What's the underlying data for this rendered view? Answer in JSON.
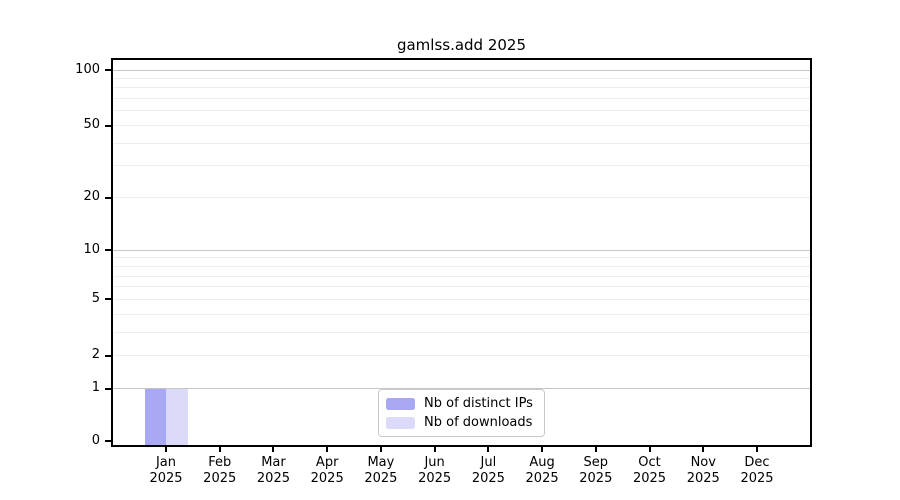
{
  "title": "gamlss.add 2025",
  "colors": {
    "distinct_ips": "#a9a8f2",
    "downloads": "#dbdaf8",
    "grid_minor": "#ededed",
    "grid_major": "#c6c6c6",
    "axis": "#000000",
    "legend_border": "#c9c9c9",
    "background": "#ffffff",
    "text": "#000000"
  },
  "chart_data": {
    "type": "bar",
    "title": "gamlss.add 2025",
    "x_categories": [
      {
        "month": "Jan",
        "year": "2025"
      },
      {
        "month": "Feb",
        "year": "2025"
      },
      {
        "month": "Mar",
        "year": "2025"
      },
      {
        "month": "Apr",
        "year": "2025"
      },
      {
        "month": "May",
        "year": "2025"
      },
      {
        "month": "Jun",
        "year": "2025"
      },
      {
        "month": "Jul",
        "year": "2025"
      },
      {
        "month": "Aug",
        "year": "2025"
      },
      {
        "month": "Sep",
        "year": "2025"
      },
      {
        "month": "Oct",
        "year": "2025"
      },
      {
        "month": "Nov",
        "year": "2025"
      },
      {
        "month": "Dec",
        "year": "2025"
      }
    ],
    "series": [
      {
        "name": "Nb of distinct IPs",
        "color_key": "distinct_ips",
        "values": [
          1,
          0,
          0,
          0,
          0,
          0,
          0,
          0,
          0,
          0,
          0,
          0
        ]
      },
      {
        "name": "Nb of downloads",
        "color_key": "downloads",
        "values": [
          1,
          0,
          0,
          0,
          0,
          0,
          0,
          0,
          0,
          0,
          0,
          0
        ]
      }
    ],
    "y_scale": "log10(value+1)",
    "ylim": [
      0,
      100
    ],
    "y_ticks": [
      0,
      1,
      2,
      5,
      10,
      20,
      50,
      100
    ],
    "y_minor_gridlines": [
      2,
      3,
      4,
      5,
      6,
      7,
      8,
      9,
      20,
      30,
      40,
      50,
      60,
      70,
      80,
      90
    ],
    "y_major_gridlines": [
      1,
      10,
      100
    ],
    "grid": true,
    "legend_position": "bottom-center"
  }
}
